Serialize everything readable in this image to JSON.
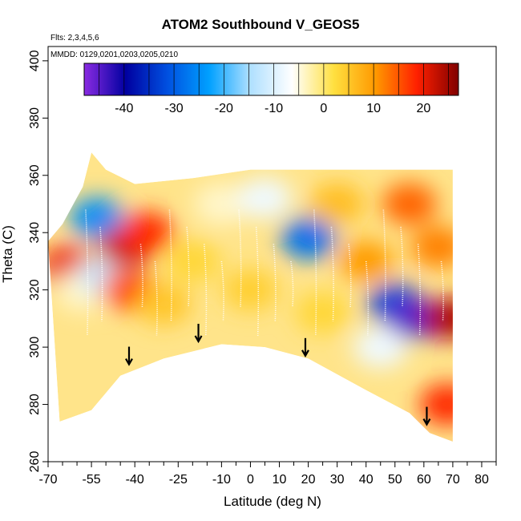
{
  "chart_data": {
    "type": "heatmap",
    "title": "ATOM2 Southbound V_GEOS5",
    "flights_note": "Flts: 2,3,4,5,6",
    "dates_note": "MMDD: 0129,0201,0203,0205,0210",
    "xlabel": "Latitude (deg N)",
    "ylabel": "Theta (C)",
    "xlim": [
      -70,
      85
    ],
    "ylim": [
      260,
      405
    ],
    "x_ticks": [
      -70,
      -55,
      -40,
      -25,
      -10,
      0,
      10,
      20,
      30,
      40,
      50,
      60,
      70,
      80
    ],
    "x_minor_ticks": [
      -65,
      -60,
      -50,
      -45,
      -35,
      -30,
      -20,
      -15,
      -5,
      5,
      15,
      25,
      35,
      45,
      55,
      65,
      75,
      85
    ],
    "y_ticks": [
      260,
      280,
      300,
      320,
      340,
      360,
      380,
      400
    ],
    "colorbar": {
      "label_values": [
        -40,
        -30,
        -20,
        -10,
        0,
        10,
        20
      ],
      "range": [
        -48,
        27
      ],
      "divider_values": [
        -45,
        -40,
        -35,
        -30,
        -25,
        -20,
        -15,
        -10,
        -5,
        0,
        5,
        10,
        15,
        20,
        25
      ],
      "colors": [
        "#8a2be2",
        "#0000a0",
        "#0050e0",
        "#00a0ff",
        "#b0e0ff",
        "#ffffff",
        "#ffe040",
        "#ff9900",
        "#ff2000",
        "#800000"
      ]
    },
    "field_outline": {
      "top": [
        [
          -70,
          337
        ],
        [
          -65,
          343
        ],
        [
          -58,
          356
        ],
        [
          -55,
          368
        ],
        [
          -50,
          362
        ],
        [
          -40,
          357
        ],
        [
          -20,
          359
        ],
        [
          0,
          362
        ],
        [
          20,
          362
        ],
        [
          40,
          362
        ],
        [
          62,
          362
        ],
        [
          70,
          362
        ]
      ],
      "bottom": [
        [
          -66,
          274
        ],
        [
          -55,
          278
        ],
        [
          -45,
          290
        ],
        [
          -30,
          296
        ],
        [
          -10,
          301
        ],
        [
          5,
          300
        ],
        [
          20,
          296
        ],
        [
          40,
          285
        ],
        [
          55,
          277
        ],
        [
          62,
          270
        ],
        [
          70,
          267
        ]
      ]
    },
    "value_patches": [
      {
        "lat": -63,
        "theta": 328,
        "v": 20
      },
      {
        "lat": -58,
        "theta": 320,
        "v": -4
      },
      {
        "lat": -53,
        "theta": 345,
        "v": -25
      },
      {
        "lat": -50,
        "theta": 325,
        "v": -12
      },
      {
        "lat": -43,
        "theta": 335,
        "v": 22
      },
      {
        "lat": -42,
        "theta": 320,
        "v": 15
      },
      {
        "lat": -36,
        "theta": 340,
        "v": 18
      },
      {
        "lat": -30,
        "theta": 315,
        "v": 5
      },
      {
        "lat": -20,
        "theta": 330,
        "v": 3
      },
      {
        "lat": -10,
        "theta": 350,
        "v": -4
      },
      {
        "lat": 0,
        "theta": 320,
        "v": 4
      },
      {
        "lat": 5,
        "theta": 352,
        "v": -8
      },
      {
        "lat": 20,
        "theta": 338,
        "v": -28
      },
      {
        "lat": 25,
        "theta": 312,
        "v": 3
      },
      {
        "lat": 30,
        "theta": 350,
        "v": 6
      },
      {
        "lat": 40,
        "theta": 330,
        "v": 10
      },
      {
        "lat": 45,
        "theta": 300,
        "v": -8
      },
      {
        "lat": 50,
        "theta": 315,
        "v": -32
      },
      {
        "lat": 57,
        "theta": 310,
        "v": -45
      },
      {
        "lat": 55,
        "theta": 350,
        "v": 14
      },
      {
        "lat": 65,
        "theta": 335,
        "v": 12
      },
      {
        "lat": 69,
        "theta": 310,
        "v": 24
      },
      {
        "lat": 68,
        "theta": 280,
        "v": 18
      }
    ],
    "arrows": [
      {
        "lat": -42,
        "theta": 294
      },
      {
        "lat": -18,
        "theta": 302
      },
      {
        "lat": 19,
        "theta": 297
      },
      {
        "lat": 61,
        "theta": 273
      }
    ]
  }
}
